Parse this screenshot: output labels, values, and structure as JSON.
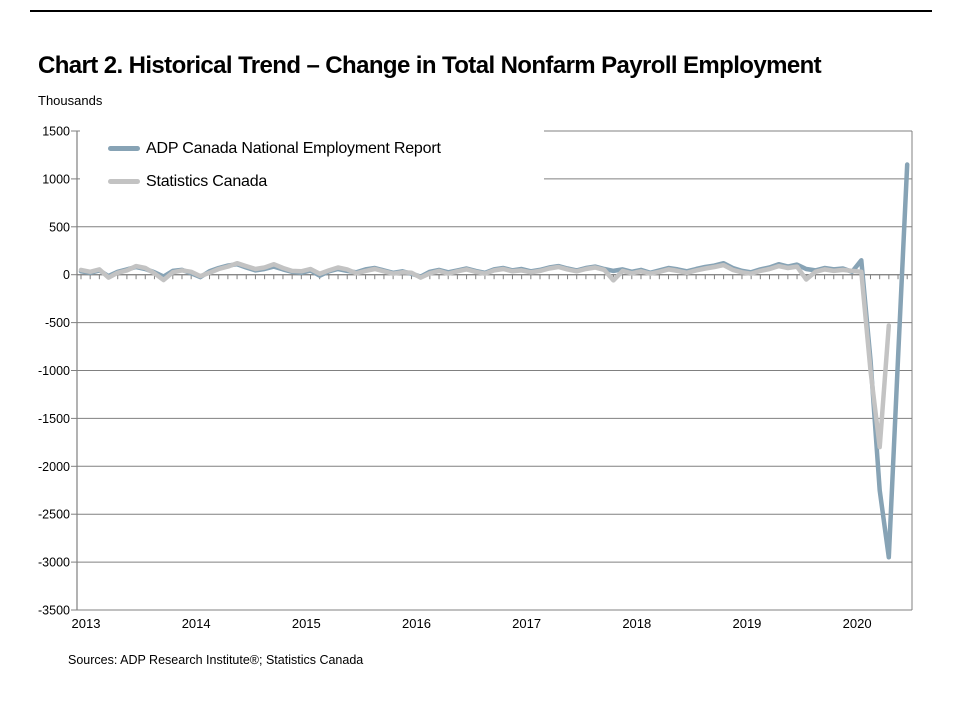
{
  "page": {
    "title": "Chart 2. Historical Trend – Change in Total Nonfarm Payroll Employment",
    "unit_label": "Thousands",
    "sources_line": "Sources: ADP Research Institute®; Statistics Canada"
  },
  "colors": {
    "adp_line": "#87a3b5",
    "statcan_line": "#c3c3c3",
    "gridline": "#808080",
    "axis": "#808080",
    "text": "#000000"
  },
  "chart_data": {
    "type": "line",
    "title": "Chart 2. Historical Trend – Change in Total Nonfarm Payroll Employment",
    "ylabel": "Thousands",
    "xlabel": "",
    "x_start_month": "2013-01",
    "x_tick_labels": [
      "2013",
      "2014",
      "2015",
      "2016",
      "2017",
      "2018",
      "2019",
      "2020"
    ],
    "ylim": [
      -3500,
      1500
    ],
    "ytick_step": 500,
    "grid": "horizontal-only",
    "legend_position": "inside-top-left",
    "values_unit": "thousands of jobs, monthly change",
    "series": [
      {
        "name": "ADP Canada National Employment Report",
        "color": "#87a3b5",
        "start": "2013-01",
        "end": "2020-07",
        "values": [
          35,
          20,
          45,
          -15,
          30,
          55,
          80,
          60,
          25,
          -20,
          40,
          50,
          15,
          -25,
          35,
          70,
          95,
          110,
          75,
          45,
          60,
          85,
          55,
          30,
          20,
          45,
          -10,
          35,
          60,
          40,
          25,
          55,
          70,
          45,
          20,
          35,
          10,
          -20,
          30,
          50,
          25,
          45,
          65,
          40,
          20,
          55,
          70,
          45,
          60,
          35,
          50,
          75,
          90,
          65,
          45,
          70,
          85,
          60,
          40,
          55,
          30,
          50,
          20,
          45,
          70,
          55,
          35,
          60,
          80,
          95,
          120,
          70,
          40,
          25,
          55,
          75,
          110,
          85,
          105,
          60,
          45,
          70,
          55,
          65,
          30,
          150,
          -890,
          -2250,
          -2950,
          -880,
          1150
        ]
      },
      {
        "name": "Statistics Canada",
        "color": "#c3c3c3",
        "start": "2013-01",
        "end": "2020-05",
        "values": [
          50,
          30,
          55,
          -30,
          20,
          45,
          90,
          70,
          15,
          -55,
          25,
          45,
          30,
          -15,
          20,
          60,
          85,
          120,
          90,
          60,
          75,
          110,
          70,
          40,
          35,
          60,
          10,
          45,
          75,
          55,
          15,
          40,
          60,
          35,
          10,
          25,
          20,
          -30,
          15,
          40,
          10,
          35,
          55,
          30,
          10,
          45,
          60,
          35,
          45,
          25,
          40,
          65,
          80,
          55,
          35,
          60,
          75,
          50,
          -60,
          40,
          15,
          35,
          10,
          30,
          55,
          40,
          20,
          45,
          65,
          80,
          100,
          50,
          25,
          10,
          40,
          60,
          90,
          70,
          85,
          -50,
          30,
          55,
          40,
          50,
          40,
          30,
          -1000,
          -1800,
          -530
        ]
      }
    ]
  }
}
